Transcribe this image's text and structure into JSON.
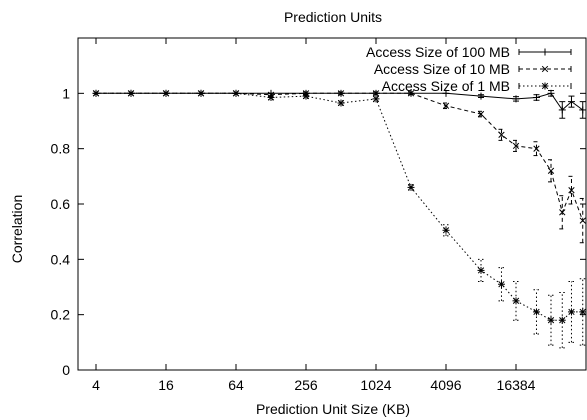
{
  "chart_data": {
    "type": "line",
    "title": "Prediction Units",
    "xlabel": "Prediction Unit Size (KB)",
    "ylabel": "Correlation",
    "x_scale": "log2",
    "xlim": [
      2.8,
      65536
    ],
    "ylim": [
      0,
      1.2
    ],
    "x_ticks": [
      4,
      16,
      64,
      256,
      1024,
      4096,
      16384
    ],
    "x_tick_labels": [
      "4",
      "16",
      "64",
      "256",
      "1024",
      "4096",
      "16384"
    ],
    "y_ticks": [
      0,
      0.2,
      0.4,
      0.6,
      0.8,
      1
    ],
    "y_tick_labels": [
      "0",
      "0.2",
      "0.4",
      "0.6",
      "0.8",
      "1"
    ],
    "grid": false,
    "legend_position": "top-right",
    "series": [
      {
        "name": "Access Size of 100 MB",
        "marker": "plus",
        "dash": "solid",
        "points": [
          {
            "x": 4,
            "y": 1.0,
            "err": 0.003
          },
          {
            "x": 8,
            "y": 1.0,
            "err": 0.003
          },
          {
            "x": 16,
            "y": 1.0,
            "err": 0.003
          },
          {
            "x": 32,
            "y": 1.0,
            "err": 0.003
          },
          {
            "x": 64,
            "y": 1.0,
            "err": 0.003
          },
          {
            "x": 128,
            "y": 1.0,
            "err": 0.003
          },
          {
            "x": 256,
            "y": 1.0,
            "err": 0.003
          },
          {
            "x": 512,
            "y": 1.0,
            "err": 0.003
          },
          {
            "x": 1024,
            "y": 1.0,
            "err": 0.003
          },
          {
            "x": 2048,
            "y": 1.0,
            "err": 0.003
          },
          {
            "x": 4096,
            "y": 1.0,
            "err": 0.003
          },
          {
            "x": 8192,
            "y": 0.99,
            "err": 0.005
          },
          {
            "x": 16384,
            "y": 0.98,
            "err": 0.008
          },
          {
            "x": 24576,
            "y": 0.985,
            "err": 0.01
          },
          {
            "x": 32768,
            "y": 1.0,
            "err": 0.01
          },
          {
            "x": 40960,
            "y": 0.94,
            "err": 0.03
          },
          {
            "x": 49152,
            "y": 0.97,
            "err": 0.02
          },
          {
            "x": 61440,
            "y": 0.94,
            "err": 0.03
          }
        ]
      },
      {
        "name": "Access Size of 10 MB",
        "marker": "x",
        "dash": "dashed",
        "points": [
          {
            "x": 4,
            "y": 1.0,
            "err": 0.003
          },
          {
            "x": 8,
            "y": 1.0,
            "err": 0.003
          },
          {
            "x": 16,
            "y": 1.0,
            "err": 0.003
          },
          {
            "x": 32,
            "y": 1.0,
            "err": 0.003
          },
          {
            "x": 64,
            "y": 1.0,
            "err": 0.003
          },
          {
            "x": 128,
            "y": 0.995,
            "err": 0.005
          },
          {
            "x": 256,
            "y": 1.0,
            "err": 0.005
          },
          {
            "x": 512,
            "y": 1.0,
            "err": 0.005
          },
          {
            "x": 1024,
            "y": 1.0,
            "err": 0.005
          },
          {
            "x": 2048,
            "y": 1.0,
            "err": 0.005
          },
          {
            "x": 4096,
            "y": 0.955,
            "err": 0.01
          },
          {
            "x": 8192,
            "y": 0.925,
            "err": 0.01
          },
          {
            "x": 12288,
            "y": 0.85,
            "err": 0.02
          },
          {
            "x": 16384,
            "y": 0.81,
            "err": 0.02
          },
          {
            "x": 24576,
            "y": 0.8,
            "err": 0.025
          },
          {
            "x": 32768,
            "y": 0.72,
            "err": 0.04
          },
          {
            "x": 40960,
            "y": 0.57,
            "err": 0.06
          },
          {
            "x": 49152,
            "y": 0.65,
            "err": 0.05
          },
          {
            "x": 61440,
            "y": 0.54,
            "err": 0.08
          }
        ]
      },
      {
        "name": "Access Size of 1 MB",
        "marker": "star",
        "dash": "dotted",
        "points": [
          {
            "x": 4,
            "y": 1.0,
            "err": 0.003
          },
          {
            "x": 8,
            "y": 1.0,
            "err": 0.003
          },
          {
            "x": 16,
            "y": 1.0,
            "err": 0.003
          },
          {
            "x": 32,
            "y": 1.0,
            "err": 0.003
          },
          {
            "x": 64,
            "y": 1.0,
            "err": 0.003
          },
          {
            "x": 128,
            "y": 0.985,
            "err": 0.008
          },
          {
            "x": 256,
            "y": 0.99,
            "err": 0.008
          },
          {
            "x": 512,
            "y": 0.965,
            "err": 0.008
          },
          {
            "x": 1024,
            "y": 0.98,
            "err": 0.01
          },
          {
            "x": 2048,
            "y": 0.66,
            "err": 0.01
          },
          {
            "x": 4096,
            "y": 0.505,
            "err": 0.02
          },
          {
            "x": 8192,
            "y": 0.36,
            "err": 0.04
          },
          {
            "x": 12288,
            "y": 0.31,
            "err": 0.06
          },
          {
            "x": 16384,
            "y": 0.25,
            "err": 0.07
          },
          {
            "x": 24576,
            "y": 0.21,
            "err": 0.08
          },
          {
            "x": 32768,
            "y": 0.18,
            "err": 0.09
          },
          {
            "x": 40960,
            "y": 0.18,
            "err": 0.1
          },
          {
            "x": 49152,
            "y": 0.21,
            "err": 0.11
          },
          {
            "x": 61440,
            "y": 0.21,
            "err": 0.12
          }
        ]
      }
    ]
  }
}
